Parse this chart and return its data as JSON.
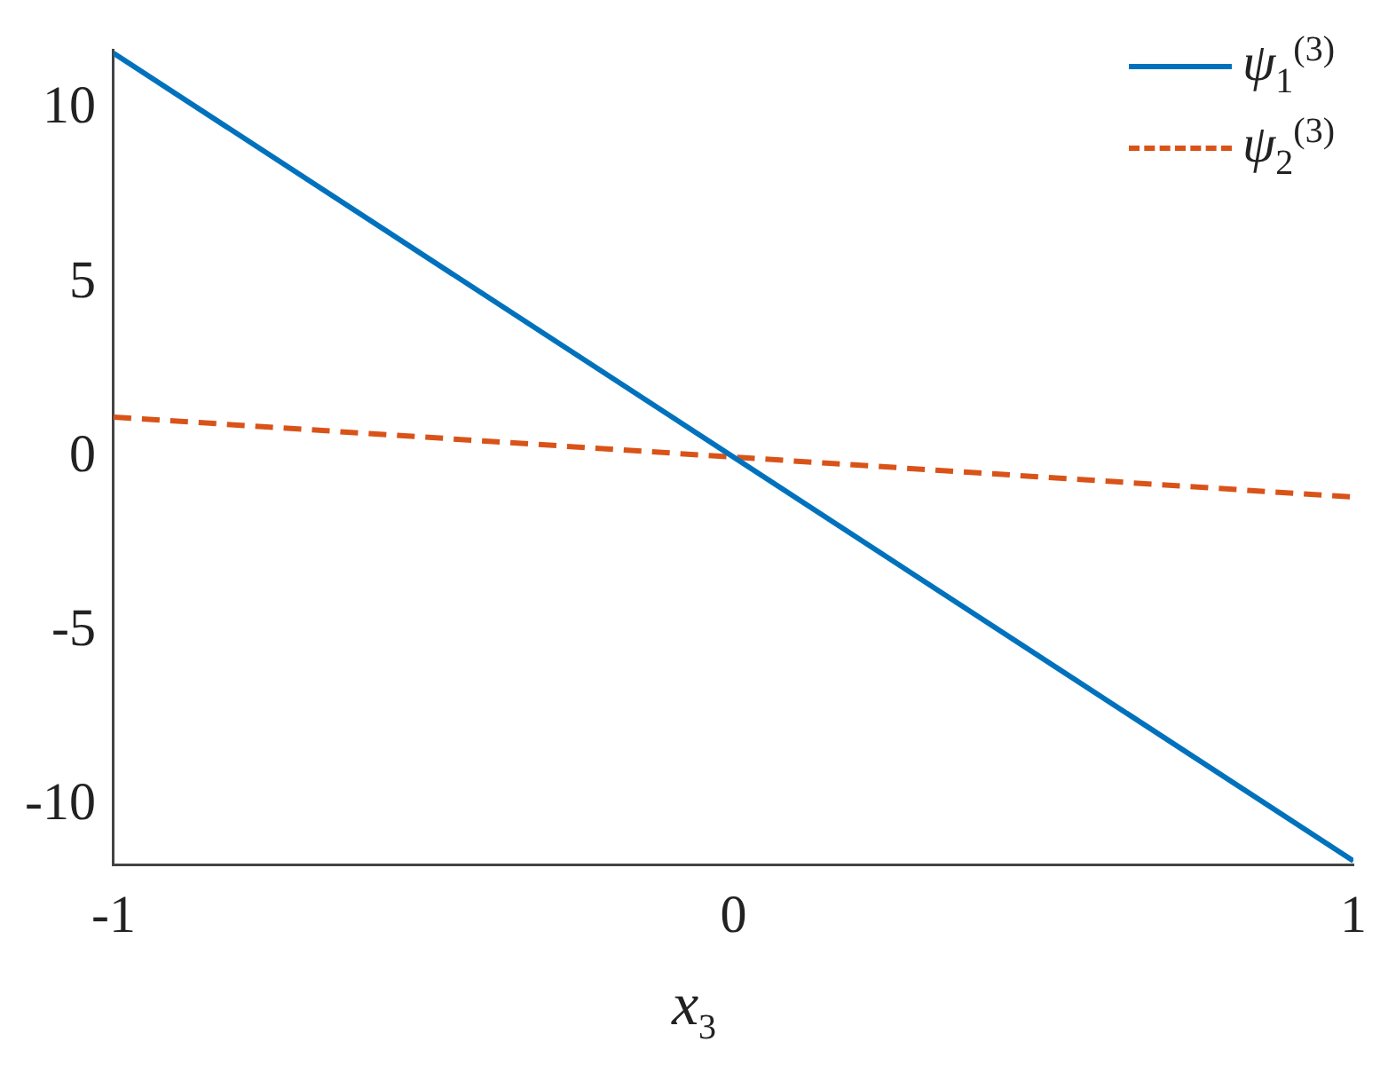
{
  "chart_data": {
    "type": "line",
    "xlabel": "x$_{3}$",
    "x": [
      -1,
      0,
      1
    ],
    "series": [
      {
        "name": "ψ$_{1}$$^{(3)}$",
        "color": "#0072bd",
        "values": [
          11.6,
          0,
          -11.6
        ],
        "line_style": "solid"
      },
      {
        "name": "ψ$_{2}$$^{(3)}$",
        "color": "#d95319",
        "values": [
          1.15,
          0,
          -1.15
        ],
        "line_style": "dashed"
      }
    ],
    "xlim": [
      -1,
      1
    ],
    "xticks": [
      -1,
      0,
      1
    ],
    "ylim": [
      -11.7,
      11.7
    ],
    "yticks": [
      -10,
      -5,
      0,
      5,
      10
    ],
    "grid": false,
    "legend": "top right",
    "marker": "none"
  }
}
